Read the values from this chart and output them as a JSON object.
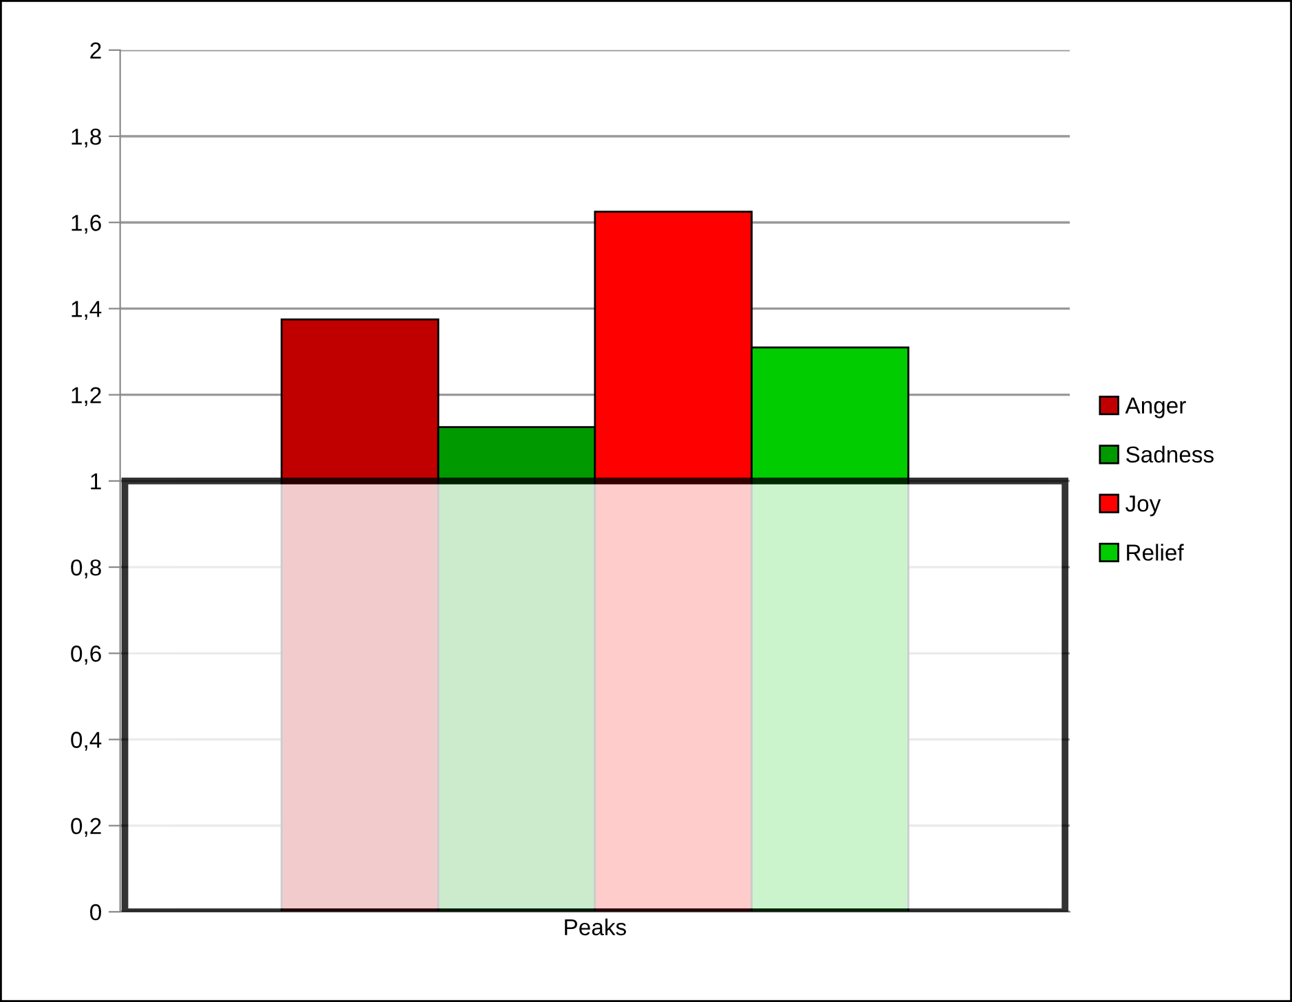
{
  "chart_data": {
    "type": "bar",
    "categories": [
      "Peaks"
    ],
    "series": [
      {
        "name": "Anger",
        "color": "#c00000",
        "values": [
          1.375
        ]
      },
      {
        "name": "Sadness",
        "color": "#009900",
        "values": [
          1.125
        ]
      },
      {
        "name": "Joy",
        "color": "#ff0000",
        "values": [
          1.625
        ]
      },
      {
        "name": "Relief",
        "color": "#00cc00",
        "values": [
          1.31
        ]
      }
    ],
    "ylim": [
      0,
      2
    ],
    "yticks": [
      0,
      {
        "value": 0.2,
        "label": "0,2"
      },
      {
        "value": 0.4,
        "label": "0,4"
      },
      {
        "value": 0.6,
        "label": "0,6"
      },
      {
        "value": 0.8,
        "label": "0,8"
      },
      1,
      {
        "value": 1.2,
        "label": "1,2"
      },
      {
        "value": 1.4,
        "label": "1,4"
      },
      {
        "value": 1.6,
        "label": "1,6"
      },
      {
        "value": 1.8,
        "label": "1,8"
      },
      2
    ],
    "bands": [
      {
        "axis": "y",
        "from": 0,
        "to": 1,
        "color": "#ffffff"
      }
    ],
    "grid": "y",
    "legend": "right"
  }
}
